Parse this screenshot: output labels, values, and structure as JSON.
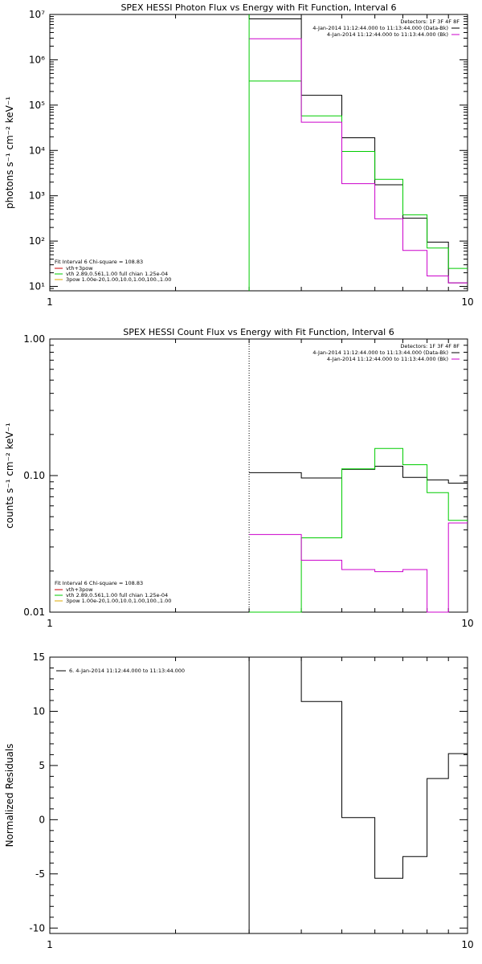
{
  "chart_data": [
    {
      "type": "line",
      "title": "SPEX HESSI Photon Flux vs Energy with Fit Function, Interval 6",
      "xlabel": "",
      "ylabel": "photons s⁻¹ cm⁻² keV⁻¹",
      "xscale": "log",
      "yscale": "log",
      "xlim": [
        1,
        10
      ],
      "ylim": [
        8,
        10000000
      ],
      "x_ticks": [
        {
          "v": 1,
          "label": "1"
        },
        {
          "v": 10,
          "label": "10"
        }
      ],
      "y_ticks": [
        {
          "v": 10,
          "label": "10¹"
        },
        {
          "v": 100,
          "label": "10²"
        },
        {
          "v": 1000,
          "label": "10³"
        },
        {
          "v": 10000,
          "label": "10⁴"
        },
        {
          "v": 100000,
          "label": "10⁵"
        },
        {
          "v": 1000000,
          "label": "10⁶"
        },
        {
          "v": 10000000,
          "label": "10⁷"
        }
      ],
      "legend_top_right": {
        "detectors": "Detectors: 1F 3F 4F 8F",
        "entries": [
          {
            "text": "4-Jan-2014 11:12:44.000 to 11:13:44.000 (Data-Bk)",
            "color": "#000000"
          },
          {
            "text": "4-Jan-2014 11:12:44.000 to 11:13:44.000 (Bk)",
            "color": "#cc00cc"
          }
        ]
      },
      "legend_bottom_left": {
        "header": "Fit Interval 6   Chi-square = 108.83",
        "entries": [
          {
            "text": "vth+3pow",
            "color": "#cc0000"
          },
          {
            "text": "vth 2.89,0.561,1.00  full chian 1.25e-04",
            "color": "#00cc00"
          },
          {
            "text": "3pow 1.00e-20,1.00,10.0,1.00,100.,1.00",
            "color": "#ddaa00"
          }
        ]
      },
      "series": [
        {
          "color": "#000000",
          "style": "step",
          "edges": [
            3,
            4,
            5,
            6,
            7,
            8,
            9,
            10
          ],
          "values": [
            8000000,
            165000,
            19000,
            1750,
            320,
            95,
            12
          ]
        },
        {
          "color": "#00cc00",
          "style": "step",
          "edges": [
            3,
            4,
            5,
            6,
            7,
            8,
            9,
            10
          ],
          "values": [
            340000,
            58000,
            9500,
            2300,
            380,
            70,
            25
          ]
        },
        {
          "color": "#cc00cc",
          "style": "step",
          "edges": [
            3,
            4,
            5,
            6,
            7,
            8,
            9,
            10
          ],
          "values": [
            2900000,
            42000,
            1850,
            310,
            62,
            17,
            12
          ]
        }
      ],
      "vlines": [
        {
          "x": 3,
          "color": "#00cc00",
          "dash": "none"
        }
      ]
    },
    {
      "type": "line",
      "title": "SPEX HESSI Count Flux vs Energy with Fit Function, Interval 6",
      "xlabel": "",
      "ylabel": "counts s⁻¹ cm⁻² keV⁻¹",
      "xscale": "log",
      "yscale": "log",
      "xlim": [
        1,
        10
      ],
      "ylim": [
        0.01,
        1.0
      ],
      "x_ticks": [
        {
          "v": 1,
          "label": "1"
        },
        {
          "v": 10,
          "label": "10"
        }
      ],
      "y_ticks": [
        {
          "v": 0.01,
          "label": "0.01"
        },
        {
          "v": 0.1,
          "label": "0.10"
        },
        {
          "v": 1.0,
          "label": "1.00"
        }
      ],
      "legend_top_right": {
        "detectors": "Detectors: 1F 3F 4F 8F",
        "entries": [
          {
            "text": "4-Jan-2014 11:12:44.000 to 11:13:44.000 (Data-Bk)",
            "color": "#000000"
          },
          {
            "text": "4-Jan-2014 11:12:44.000 to 11:13:44.000 (Bk)",
            "color": "#cc00cc"
          }
        ]
      },
      "legend_bottom_left": {
        "header": "Fit Interval 6   Chi-square = 108.83",
        "entries": [
          {
            "text": "vth+3pow",
            "color": "#cc0000"
          },
          {
            "text": "vth 2.89,0.561,1.00  full chian 1.25e-04",
            "color": "#00cc00"
          },
          {
            "text": "3pow 1.00e-20,1.00,10.0,1.00,100.,1.00",
            "color": "#ddaa00"
          }
        ]
      },
      "series": [
        {
          "color": "#000000",
          "style": "step",
          "edges": [
            3,
            4,
            5,
            6,
            7,
            8,
            9,
            10
          ],
          "values": [
            0.105,
            0.096,
            0.111,
            0.117,
            0.097,
            0.093,
            0.088
          ]
        },
        {
          "color": "#00cc00",
          "style": "step",
          "edges": [
            3,
            4,
            5,
            6,
            7,
            8,
            9,
            10
          ],
          "values": [
            0.0095,
            0.035,
            0.112,
            0.158,
            0.12,
            0.075,
            0.047
          ]
        },
        {
          "color": "#cc00cc",
          "style": "step",
          "edges": [
            3,
            4,
            5,
            6,
            7,
            8,
            9,
            10
          ],
          "values": [
            0.037,
            0.024,
            0.0205,
            0.0198,
            0.0205,
            0.0092,
            0.045
          ]
        }
      ],
      "vlines": [
        {
          "x": 3,
          "color": "#000000",
          "dash": "1,2"
        }
      ]
    },
    {
      "type": "line",
      "title": "",
      "xlabel": "",
      "ylabel": "Normalized Residuals",
      "xscale": "log",
      "yscale": "linear",
      "xlim": [
        1,
        10
      ],
      "ylim": [
        -10.5,
        15
      ],
      "x_ticks": [
        {
          "v": 1,
          "label": "1"
        },
        {
          "v": 10,
          "label": "10"
        }
      ],
      "y_ticks": [
        {
          "v": -10,
          "label": "-10"
        },
        {
          "v": -5,
          "label": "-5"
        },
        {
          "v": 0,
          "label": "0"
        },
        {
          "v": 5,
          "label": "5"
        },
        {
          "v": 10,
          "label": "10"
        },
        {
          "v": 15,
          "label": "15"
        }
      ],
      "legend_top_left": {
        "entries": [
          {
            "text": "6.  4-Jan-2014 11:12:44.000 to 11:13:44.000",
            "color": "#000000"
          }
        ]
      },
      "series": [
        {
          "color": "#000000",
          "style": "step",
          "edges": [
            3,
            4,
            5,
            6,
            7,
            8,
            9,
            10
          ],
          "values": [
            16,
            10.9,
            0.2,
            -5.4,
            -3.4,
            3.8,
            6.1
          ]
        }
      ],
      "vlines": [
        {
          "x": 3,
          "color": "#000000",
          "dash": "none",
          "y_from": -10.5,
          "y_to": 15
        }
      ]
    }
  ]
}
